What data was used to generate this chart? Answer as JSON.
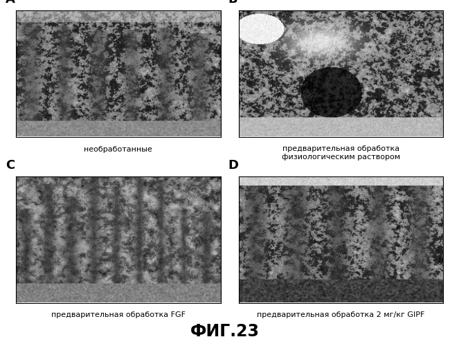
{
  "title": "ФИГ.23",
  "title_fontsize": 17,
  "title_fontweight": "bold",
  "panel_labels": [
    "A",
    "B",
    "C",
    "D"
  ],
  "panel_label_fontsize": 13,
  "panel_label_fontweight": "bold",
  "captions": [
    "необработанные",
    "предварительная обработка\nфизиологическим раствором",
    "предварительная обработка FGF",
    "предварительная обработка 2 мг/кг GIPF"
  ],
  "caption_fontsize": 8,
  "background_color": "#ffffff",
  "border_color": "#000000",
  "fig_width": 6.5,
  "fig_height": 5.0,
  "dpi": 100
}
